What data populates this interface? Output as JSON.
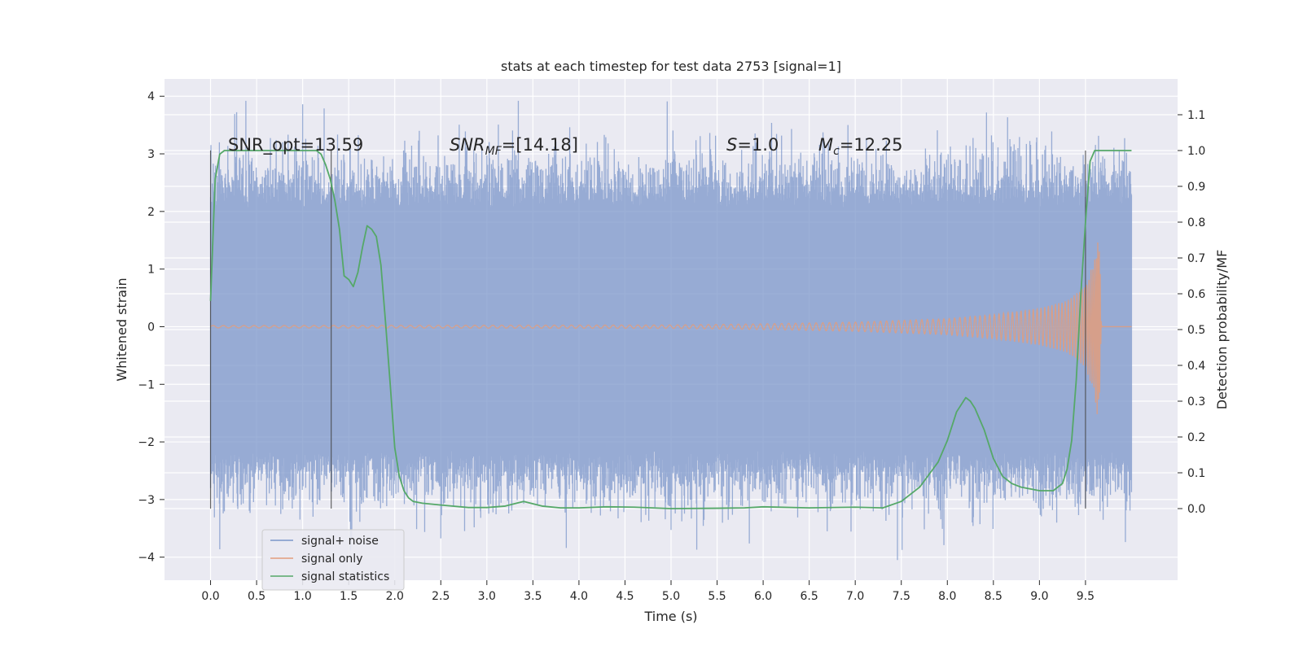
{
  "chart_data": {
    "type": "line",
    "title": "stats at each timestep for test data 2753 [signal=1]",
    "xlabel": "Time (s)",
    "ylabel": "Whitened strain",
    "ylabel_right": "Detection probability/MF",
    "xlim": [
      -0.5,
      10.5
    ],
    "ylim": [
      -4.4,
      4.3
    ],
    "ylim_right": [
      -0.2,
      1.2
    ],
    "xticks": [
      "0.0",
      "0.5",
      "1.0",
      "1.5",
      "2.0",
      "2.5",
      "3.0",
      "3.5",
      "4.0",
      "4.5",
      "5.0",
      "5.5",
      "6.0",
      "6.5",
      "7.0",
      "7.5",
      "8.0",
      "8.5",
      "9.0",
      "9.5"
    ],
    "yticks_left": [
      "−4",
      "−3",
      "−2",
      "−1",
      "0",
      "1",
      "2",
      "3",
      "4"
    ],
    "yticks_right": [
      "0.0",
      "0.1",
      "0.2",
      "0.3",
      "0.4",
      "0.5",
      "0.6",
      "0.7",
      "0.8",
      "0.9",
      "1.0",
      "1.1"
    ],
    "grid": true,
    "background_color": "#eaeaf2",
    "annotations": {
      "snr_opt": "SNR_opt=13.59",
      "snr_mf_italic": "SNR",
      "snr_mf_sub": "MF",
      "snr_mf_rest": "=[14.18]",
      "s_italic": "S",
      "s_rest": "=1.0",
      "mc_italic": "M",
      "mc_sub": "c",
      "mc_rest": "=12.25"
    },
    "vertical_markers": [
      0.0,
      1.31,
      9.5
    ],
    "legend": {
      "placement": "lower-left",
      "entries": [
        "signal+ noise",
        "signal only",
        "signal statistics"
      ]
    },
    "series": [
      {
        "name": "signal+ noise",
        "color": "#7b96c9",
        "axis": "left",
        "x_range": [
          0.0,
          10.0
        ],
        "typical_band": [
          -2.4,
          2.3
        ],
        "extremes": [
          -4.05,
          3.92
        ]
      },
      {
        "name": "signal only",
        "color": "#e19c7d",
        "axis": "left",
        "x_range": [
          0.0,
          10.0
        ],
        "envelope_x": [
          0.0,
          5.0,
          6.0,
          7.0,
          8.0,
          8.5,
          9.0,
          9.3,
          9.5,
          9.6,
          9.65,
          9.67
        ],
        "envelope_amp": [
          0.02,
          0.03,
          0.05,
          0.08,
          0.14,
          0.21,
          0.32,
          0.45,
          0.7,
          1.2,
          1.8,
          0.1
        ]
      },
      {
        "name": "signal statistics",
        "color": "#55a868",
        "axis": "right",
        "x": [
          0.0,
          0.05,
          0.1,
          0.15,
          0.2,
          0.3,
          0.5,
          0.7,
          0.9,
          1.0,
          1.1,
          1.15,
          1.2,
          1.25,
          1.3,
          1.35,
          1.4,
          1.45,
          1.5,
          1.55,
          1.6,
          1.65,
          1.7,
          1.75,
          1.8,
          1.85,
          1.9,
          1.95,
          2.0,
          2.05,
          2.1,
          2.15,
          2.2,
          2.3,
          2.5,
          2.8,
          3.0,
          3.2,
          3.4,
          3.6,
          3.8,
          4.0,
          4.3,
          4.6,
          5.0,
          5.5,
          5.8,
          6.0,
          6.5,
          7.0,
          7.3,
          7.5,
          7.7,
          7.9,
          8.0,
          8.1,
          8.2,
          8.25,
          8.3,
          8.4,
          8.5,
          8.6,
          8.7,
          8.8,
          9.0,
          9.1,
          9.15,
          9.2,
          9.25,
          9.3,
          9.35,
          9.4,
          9.45,
          9.5,
          9.55,
          9.6,
          9.7,
          9.8,
          9.9,
          10.0
        ],
        "y": [
          0.58,
          0.92,
          0.99,
          1.0,
          1.0,
          1.0,
          1.0,
          1.0,
          1.0,
          1.0,
          1.0,
          1.0,
          0.99,
          0.96,
          0.92,
          0.86,
          0.78,
          0.65,
          0.64,
          0.62,
          0.66,
          0.73,
          0.79,
          0.78,
          0.76,
          0.68,
          0.52,
          0.35,
          0.17,
          0.09,
          0.05,
          0.03,
          0.02,
          0.015,
          0.01,
          0.003,
          0.003,
          0.007,
          0.02,
          0.007,
          0.002,
          0.002,
          0.005,
          0.004,
          0.0,
          0.001,
          0.002,
          0.005,
          0.002,
          0.004,
          0.002,
          0.02,
          0.06,
          0.13,
          0.19,
          0.27,
          0.31,
          0.3,
          0.28,
          0.22,
          0.14,
          0.09,
          0.07,
          0.06,
          0.05,
          0.05,
          0.05,
          0.06,
          0.07,
          0.11,
          0.19,
          0.36,
          0.6,
          0.8,
          0.97,
          1.0,
          1.0,
          1.0,
          1.0,
          1.0
        ]
      }
    ]
  }
}
